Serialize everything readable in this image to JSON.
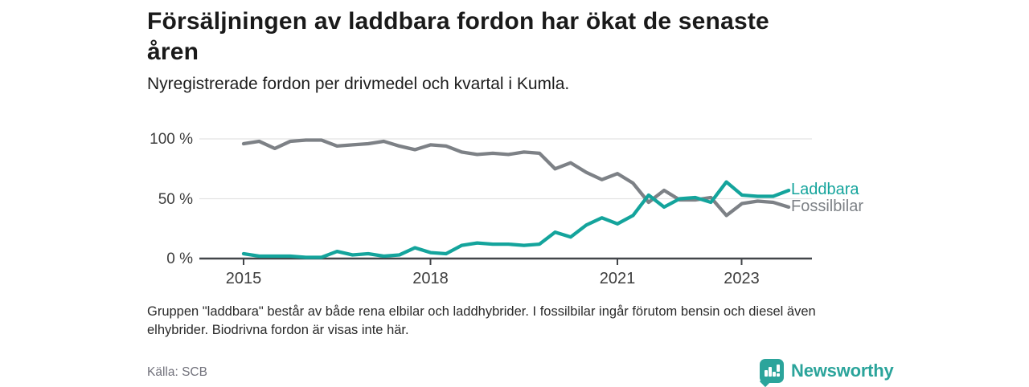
{
  "header": {
    "title_line1": "Försäljningen av laddbara fordon har ökat de senaste",
    "title_line2": "åren",
    "subtitle": "Nyregistrerade fordon per drivmedel och kvartal i Kumla."
  },
  "chart_data": {
    "type": "line",
    "title": "Nyregistrerade fordon per drivmedel och kvartal i Kumla",
    "x_unit": "quarter",
    "x_range": [
      "2015-Q1",
      "2023-Q4"
    ],
    "x_tick_labels": [
      "2015",
      "2018",
      "2021",
      "2023"
    ],
    "y_tick_labels": [
      "100 %",
      "50 %",
      "0 %"
    ],
    "ylim": [
      0,
      100
    ],
    "grid": "horizontal",
    "legend_position": "line-end-labels",
    "series": [
      {
        "name": "Fossilbilar",
        "color": "#7d8186",
        "values": [
          96,
          98,
          92,
          98,
          99,
          99,
          94,
          95,
          96,
          98,
          94,
          91,
          95,
          94,
          89,
          87,
          88,
          87,
          89,
          88,
          75,
          80,
          72,
          66,
          71,
          63,
          47,
          57,
          49,
          49,
          51,
          36,
          46,
          48,
          47,
          43
        ]
      },
      {
        "name": "Laddbara",
        "color": "#14a49c",
        "values": [
          4,
          2,
          2,
          2,
          1,
          1,
          6,
          3,
          4,
          2,
          3,
          9,
          5,
          4,
          11,
          13,
          12,
          12,
          11,
          12,
          22,
          18,
          28,
          34,
          29,
          36,
          53,
          43,
          50,
          51,
          47,
          64,
          53,
          52,
          52,
          57
        ]
      }
    ]
  },
  "footnote": {
    "line1": "Gruppen \"laddbara\" består av både rena elbilar och laddhybrider. I fossilbilar ingår förutom bensin och diesel även",
    "line2": "elhybrider. Biodrivna fordon är visas inte här."
  },
  "source": "Källa: SCB",
  "logo": {
    "text": "Newsworthy",
    "icon": "bar-chart-speech-bubble-icon",
    "color": "#2ba49b"
  }
}
